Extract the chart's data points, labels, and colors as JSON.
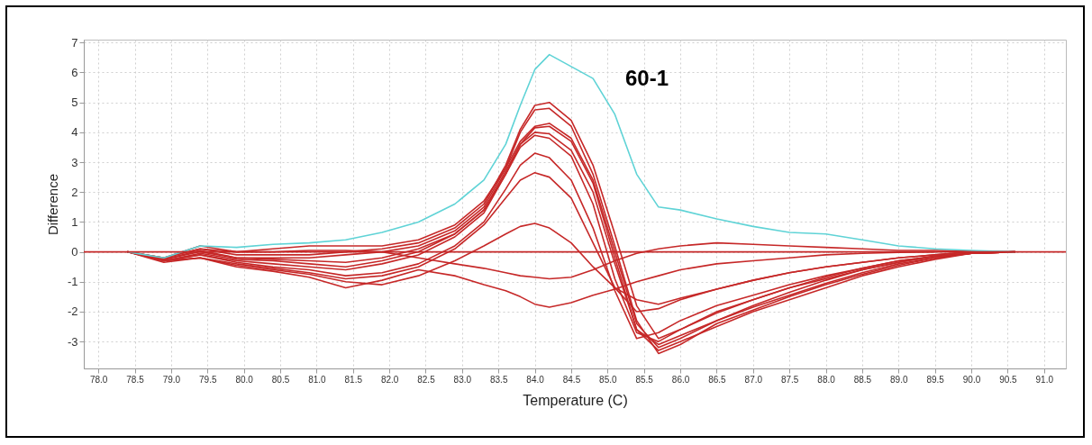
{
  "chart_data": {
    "type": "line",
    "xlabel": "Temperature (C)",
    "ylabel": "Difference",
    "x": [
      78.4,
      78.9,
      79.4,
      79.9,
      80.4,
      80.9,
      81.4,
      81.9,
      82.4,
      82.9,
      83.3,
      83.6,
      83.8,
      84.0,
      84.2,
      84.5,
      84.8,
      85.1,
      85.4,
      85.7,
      86.0,
      86.5,
      87.0,
      87.5,
      88.0,
      88.5,
      89.0,
      89.5,
      90.0,
      90.6
    ],
    "series": [
      {
        "color": "#c62828",
        "values": [
          0,
          -0.2,
          0.1,
          -0.1,
          -0.1,
          -0.1,
          0,
          0.1,
          0.3,
          0.8,
          1.6,
          2.9,
          4.1,
          4.9,
          5.0,
          4.4,
          2.9,
          0.6,
          -1.8,
          -2.9,
          -2.6,
          -2.0,
          -1.6,
          -1.2,
          -0.9,
          -0.6,
          -0.35,
          -0.15,
          -0.05,
          0
        ]
      },
      {
        "color": "#c62828",
        "values": [
          0,
          -0.25,
          0.05,
          -0.2,
          -0.2,
          -0.2,
          -0.1,
          0,
          0.2,
          0.7,
          1.5,
          2.8,
          4.0,
          4.75,
          4.8,
          4.2,
          2.6,
          0.2,
          -2.3,
          -3.4,
          -3.1,
          -2.4,
          -1.95,
          -1.5,
          -1.1,
          -0.75,
          -0.45,
          -0.2,
          -0.05,
          0
        ]
      },
      {
        "color": "#c62828",
        "values": [
          0,
          -0.2,
          0.2,
          0,
          0.1,
          0.2,
          0.2,
          0.2,
          0.4,
          0.9,
          1.7,
          2.8,
          3.7,
          4.2,
          4.3,
          3.8,
          2.4,
          0,
          -2.4,
          -3.2,
          -2.9,
          -2.3,
          -1.85,
          -1.45,
          -1.05,
          -0.7,
          -0.4,
          -0.2,
          -0.05,
          0
        ]
      },
      {
        "color": "#c62828",
        "values": [
          0,
          -0.3,
          -0.1,
          -0.3,
          -0.4,
          -0.5,
          -0.6,
          -0.4,
          -0.1,
          0.5,
          1.3,
          2.6,
          3.6,
          4.15,
          4.2,
          3.7,
          2.3,
          -0.2,
          -2.6,
          -3.3,
          -3.0,
          -2.5,
          -2.0,
          -1.6,
          -1.2,
          -0.8,
          -0.5,
          -0.25,
          -0.05,
          0
        ]
      },
      {
        "color": "#c62828",
        "values": [
          0,
          -0.3,
          -0.05,
          -0.25,
          -0.3,
          -0.4,
          -0.5,
          -0.3,
          0,
          0.6,
          1.4,
          2.7,
          3.6,
          4.0,
          3.95,
          3.4,
          2.0,
          -0.4,
          -2.6,
          -3.1,
          -2.8,
          -2.3,
          -1.8,
          -1.35,
          -0.95,
          -0.6,
          -0.35,
          -0.15,
          -0.05,
          0
        ]
      },
      {
        "color": "#c62828",
        "values": [
          0,
          -0.25,
          0,
          -0.2,
          -0.25,
          -0.3,
          -0.35,
          -0.2,
          0.1,
          0.6,
          1.4,
          2.6,
          3.5,
          3.9,
          3.8,
          3.2,
          1.6,
          -0.9,
          -2.7,
          -3.0,
          -2.6,
          -2.05,
          -1.6,
          -1.2,
          -0.85,
          -0.55,
          -0.3,
          -0.15,
          -0.05,
          0
        ]
      },
      {
        "color": "#c62828",
        "values": [
          0,
          -0.3,
          -0.1,
          -0.35,
          -0.5,
          -0.6,
          -0.8,
          -0.7,
          -0.4,
          0.2,
          1.0,
          2.1,
          2.9,
          3.3,
          3.15,
          2.4,
          0.8,
          -1.3,
          -2.9,
          -2.7,
          -2.3,
          -1.8,
          -1.45,
          -1.1,
          -0.8,
          -0.55,
          -0.3,
          -0.15,
          -0.05,
          0
        ]
      },
      {
        "color": "#c62828",
        "values": [
          0,
          -0.35,
          -0.2,
          -0.4,
          -0.55,
          -0.7,
          -0.9,
          -0.8,
          -0.5,
          0.1,
          0.9,
          1.8,
          2.4,
          2.65,
          2.5,
          1.8,
          0.3,
          -1.2,
          -2.0,
          -1.9,
          -1.6,
          -1.25,
          -0.95,
          -0.7,
          -0.5,
          -0.35,
          -0.2,
          -0.1,
          0,
          0
        ]
      },
      {
        "color": "#c62828",
        "x": [
          78.4,
          78.9,
          79.4,
          79.9,
          80.4,
          80.9,
          81.4,
          81.9,
          82.4,
          82.9,
          83.3,
          83.6,
          83.8,
          84.0,
          84.2,
          84.5,
          84.8,
          85.1,
          85.4,
          85.7,
          86.0,
          86.5,
          87.0,
          87.5,
          88.0,
          88.5,
          89.0,
          89.5,
          90.0
        ],
        "values": [
          0,
          -0.3,
          -0.2,
          -0.45,
          -0.6,
          -0.75,
          -1.0,
          -1.1,
          -0.8,
          -0.3,
          0.2,
          0.6,
          0.85,
          0.95,
          0.8,
          0.3,
          -0.5,
          -1.2,
          -1.6,
          -1.75,
          -1.55,
          -1.25,
          -0.95,
          -0.7,
          -0.5,
          -0.35,
          -0.2,
          -0.1,
          0
        ]
      },
      {
        "color": "#c62828",
        "values": [
          0,
          -0.2,
          0.1,
          0,
          0,
          0.05,
          0.05,
          0,
          -0.2,
          -0.4,
          -0.55,
          -0.7,
          -0.8,
          -0.85,
          -0.9,
          -0.85,
          -0.6,
          -0.3,
          -0.05,
          0.1,
          0.2,
          0.3,
          0.25,
          0.2,
          0.15,
          0.1,
          0.05,
          0.05,
          0.02,
          0
        ]
      },
      {
        "color": "#c62828",
        "x": [
          78.9,
          79.4,
          79.9,
          80.4,
          80.9,
          81.4,
          81.9,
          82.4,
          82.9,
          83.3,
          83.6,
          83.8,
          84.0,
          84.2,
          84.5,
          84.8,
          85.1,
          85.4,
          85.7,
          86.0,
          86.5,
          87.0,
          87.5,
          88.0,
          88.5,
          89.0,
          89.5
        ],
        "values": [
          -0.3,
          -0.2,
          -0.5,
          -0.65,
          -0.85,
          -1.2,
          -0.95,
          -0.6,
          -0.8,
          -1.1,
          -1.3,
          -1.5,
          -1.75,
          -1.85,
          -1.7,
          -1.45,
          -1.25,
          -1.0,
          -0.8,
          -0.6,
          -0.4,
          -0.3,
          -0.2,
          -0.1,
          -0.05,
          -0.02,
          0
        ]
      },
      {
        "color": "#5fd3d6",
        "values": [
          0,
          -0.2,
          0.2,
          0.15,
          0.25,
          0.3,
          0.4,
          0.65,
          1.0,
          1.6,
          2.4,
          3.6,
          4.9,
          6.1,
          6.6,
          6.2,
          5.8,
          4.6,
          2.6,
          1.5,
          1.4,
          1.1,
          0.85,
          0.65,
          0.6,
          0.4,
          0.2,
          0.1,
          0.05,
          0
        ]
      }
    ],
    "annotations": [
      "60-1"
    ],
    "ref_lines": [
      {
        "axis": "y",
        "value": 0,
        "color": "#c62828"
      }
    ],
    "xlim": [
      77.8,
      91.3
    ],
    "ylim": [
      -3.9,
      7.1
    ],
    "xticks": [
      {
        "value": 78,
        "label": "78.0"
      },
      78.5,
      {
        "value": 79,
        "label": "79.0"
      },
      79.5,
      {
        "value": 80,
        "label": "80.0"
      },
      80.5,
      {
        "value": 81,
        "label": "81.0"
      },
      81.5,
      {
        "value": 82,
        "label": "82.0"
      },
      82.5,
      {
        "value": 83,
        "label": "83.0"
      },
      83.5,
      {
        "value": 84,
        "label": "84.0"
      },
      84.5,
      {
        "value": 85,
        "label": "85.0"
      },
      85.5,
      {
        "value": 86,
        "label": "86.0"
      },
      86.5,
      {
        "value": 87,
        "label": "87.0"
      },
      87.5,
      {
        "value": 88,
        "label": "88.0"
      },
      88.5,
      {
        "value": 89,
        "label": "89.0"
      },
      89.5,
      {
        "value": 90,
        "label": "90.0"
      },
      90.5,
      {
        "value": 91,
        "label": "91.0"
      }
    ],
    "yticks": [
      -3,
      -2,
      -1,
      0,
      1,
      2,
      3,
      4,
      5,
      6,
      7
    ],
    "grid": true,
    "line_style": "solid"
  }
}
